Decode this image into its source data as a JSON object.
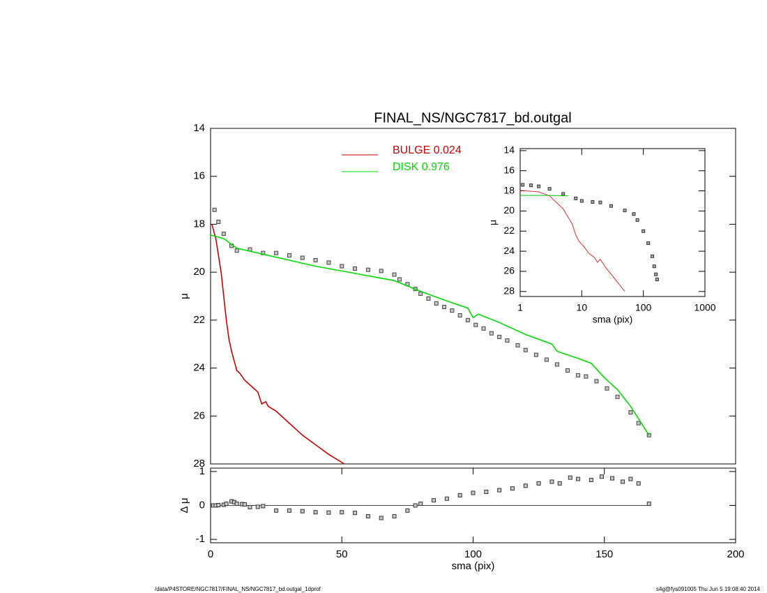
{
  "footer": {
    "path": "/data/P4STORE/NGC7817/FINAL_NS/NGC7817_bd.outgal_1dprof",
    "stamp": "s4g@fys091005  Thu Jun  5 19:08:40 2014"
  },
  "chart_data": [
    {
      "type": "line",
      "title": "FINAL_NS/NGC7817_bd.outgal",
      "ylabel": "μ",
      "xlim": [
        0,
        200
      ],
      "ylim": [
        28,
        14
      ],
      "yticks": [
        14,
        16,
        18,
        20,
        22,
        24,
        26,
        28
      ],
      "points": {
        "color": "#c8c8c8",
        "edge": "#444444",
        "x": [
          1.5,
          3,
          5,
          8,
          10,
          15,
          20,
          25,
          30,
          35,
          40,
          45,
          50,
          55,
          60,
          65,
          70,
          72,
          75,
          78,
          80,
          83,
          86,
          89,
          92,
          95,
          98,
          101,
          104,
          107,
          110,
          113,
          117,
          120,
          124,
          128,
          132,
          136,
          140,
          143,
          147,
          151,
          155,
          160,
          163,
          167
        ],
        "y": [
          17.4,
          17.9,
          18.4,
          18.9,
          19.1,
          19.05,
          19.2,
          19.2,
          19.3,
          19.4,
          19.5,
          19.6,
          19.75,
          19.85,
          19.9,
          19.95,
          20.1,
          20.3,
          20.5,
          20.7,
          20.9,
          21.1,
          21.3,
          21.45,
          21.6,
          21.8,
          22.0,
          22.2,
          22.35,
          22.55,
          22.7,
          22.85,
          23.05,
          23.25,
          23.45,
          23.65,
          23.85,
          24.1,
          24.3,
          24.35,
          24.55,
          24.85,
          25.2,
          25.85,
          26.3,
          26.8
        ]
      },
      "series": [
        {
          "name": "BULGE  0.024",
          "color": "#cc0000",
          "x": [
            0.5,
            2,
            4,
            6,
            7,
            8,
            10,
            11,
            13,
            16,
            18,
            19.5,
            21,
            22,
            25,
            30,
            35,
            40,
            45,
            51
          ],
          "values": [
            18.0,
            18.6,
            20.0,
            22.0,
            22.8,
            23.3,
            24.1,
            24.2,
            24.5,
            24.8,
            25.0,
            25.5,
            25.4,
            25.6,
            25.8,
            26.3,
            26.8,
            27.2,
            27.6,
            28.0
          ]
        },
        {
          "name": "DISK  0.976",
          "color": "#00dd00",
          "x": [
            0,
            5,
            10,
            20,
            30,
            40,
            50,
            60,
            70,
            80,
            90,
            98,
            100,
            102,
            110,
            120,
            130,
            132,
            140,
            145,
            150,
            155,
            160,
            167
          ],
          "values": [
            18.45,
            18.6,
            19.0,
            19.25,
            19.5,
            19.75,
            19.95,
            20.15,
            20.35,
            20.8,
            21.2,
            21.5,
            21.9,
            21.75,
            22.1,
            22.6,
            23.0,
            23.3,
            23.6,
            23.8,
            24.4,
            24.9,
            25.6,
            26.8
          ]
        }
      ]
    },
    {
      "type": "scatter",
      "xlabel": "sma (pix)",
      "ylabel": "Δ μ",
      "xlim": [
        0,
        200
      ],
      "ylim": [
        -1.1,
        1.1
      ],
      "xticks": [
        0,
        50,
        100,
        150,
        200
      ],
      "yticks": [
        -1,
        0,
        1
      ],
      "reference_line": 0,
      "points": {
        "color": "#c8c8c8",
        "edge": "#333333",
        "x": [
          1,
          2,
          3,
          5,
          6,
          8,
          9,
          10,
          12,
          13,
          15,
          18,
          20,
          25,
          30,
          35,
          40,
          45,
          50,
          55,
          60,
          65,
          70,
          75,
          78,
          80,
          85,
          90,
          95,
          100,
          105,
          110,
          115,
          120,
          125,
          130,
          133,
          137,
          140,
          145,
          149,
          153,
          157,
          160,
          163,
          167
        ],
        "y": [
          0.0,
          0.0,
          0.01,
          0.02,
          0.05,
          0.12,
          0.1,
          0.05,
          0.04,
          0.03,
          -0.05,
          -0.04,
          -0.02,
          -0.15,
          -0.15,
          -0.17,
          -0.2,
          -0.21,
          -0.2,
          -0.22,
          -0.32,
          -0.37,
          -0.32,
          -0.15,
          0.0,
          0.05,
          0.15,
          0.2,
          0.3,
          0.37,
          0.4,
          0.45,
          0.5,
          0.58,
          0.65,
          0.7,
          0.65,
          0.82,
          0.78,
          0.75,
          0.85,
          0.8,
          0.7,
          0.78,
          0.65,
          0.05
        ]
      }
    },
    {
      "type": "line",
      "xlabel": "sma (pix)",
      "ylabel": "μ",
      "xlog": true,
      "xlim": [
        1,
        1000
      ],
      "ylim": [
        28.5,
        13.8
      ],
      "xticks": [
        1,
        10,
        100,
        1000
      ],
      "yticks": [
        14,
        16,
        18,
        20,
        22,
        24,
        26,
        28
      ],
      "points": {
        "color": "#aaaaaa",
        "edge": "#333333",
        "x": [
          1.1,
          1.5,
          2,
          3,
          5,
          8,
          10,
          15,
          20,
          30,
          50,
          70,
          80,
          100,
          120,
          140,
          150,
          160,
          167
        ],
        "y": [
          17.4,
          17.45,
          17.55,
          17.8,
          18.3,
          18.75,
          19.0,
          19.1,
          19.15,
          19.5,
          19.95,
          20.3,
          20.9,
          22.0,
          23.2,
          24.5,
          25.5,
          26.3,
          26.8
        ]
      },
      "series": [
        {
          "color": "#dd3030",
          "x": [
            1,
            2,
            3,
            5,
            7,
            8,
            9,
            11,
            13,
            16,
            18,
            20,
            25,
            35,
            50
          ],
          "values": [
            17.95,
            18.1,
            18.5,
            19.8,
            21.3,
            22.4,
            23.0,
            23.6,
            24.2,
            24.6,
            25.1,
            24.8,
            25.7,
            26.8,
            28.0
          ]
        },
        {
          "color": "#00cc00",
          "x": [
            1,
            3,
            6
          ],
          "values": [
            18.45,
            18.45,
            18.5
          ]
        }
      ]
    }
  ]
}
